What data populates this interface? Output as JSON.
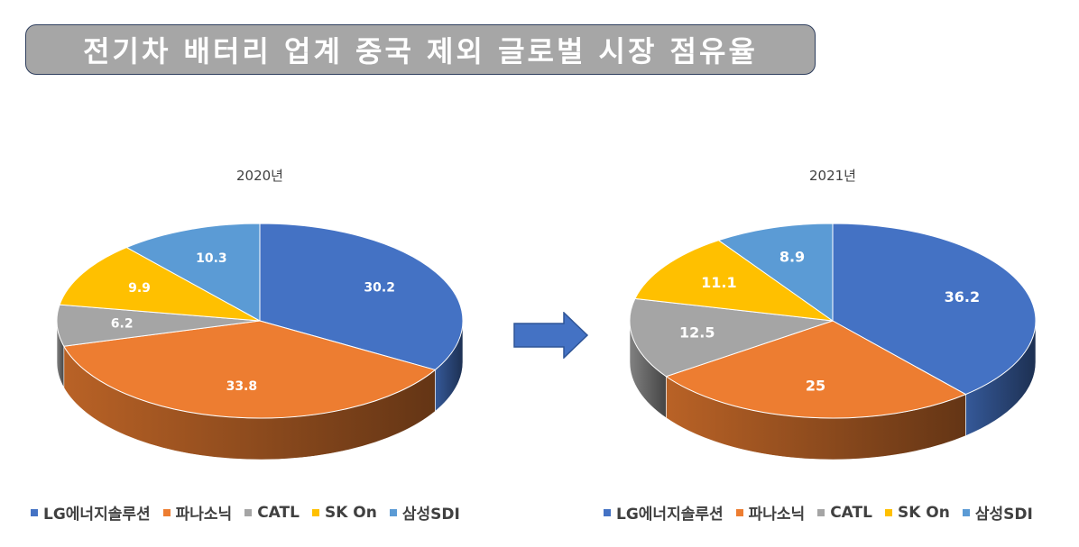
{
  "title": "전기차 배터리 업계 중국 제외 글로벌 시장 점유율",
  "colors": {
    "LG에너지솔루션": "#4472c4",
    "파나소닉": "#ed7d31",
    "CATL": "#a5a5a5",
    "SK On": "#ffc000",
    "삼성SDI": "#5b9bd5"
  },
  "arrow_icon": "right-arrow-icon",
  "chart_data": [
    {
      "type": "pie",
      "title": "2020년",
      "categories": [
        "LG에너지솔루션",
        "파나소닉",
        "CATL",
        "SK On",
        "삼성SDI"
      ],
      "values": [
        30.2,
        33.8,
        6.2,
        9.9,
        10.3
      ],
      "value_labels": [
        "30.2",
        "33.8",
        "6.2",
        "9.9",
        "10.3"
      ],
      "legend_position": "bottom"
    },
    {
      "type": "pie",
      "title": "2021년",
      "categories": [
        "LG에너지솔루션",
        "파나소닉",
        "CATL",
        "SK On",
        "삼성SDI"
      ],
      "values": [
        36.2,
        25,
        12.5,
        11.1,
        8.9
      ],
      "value_labels": [
        "36.2",
        "25",
        "12.5",
        "11.1",
        "8.9"
      ],
      "legend_position": "bottom"
    }
  ]
}
